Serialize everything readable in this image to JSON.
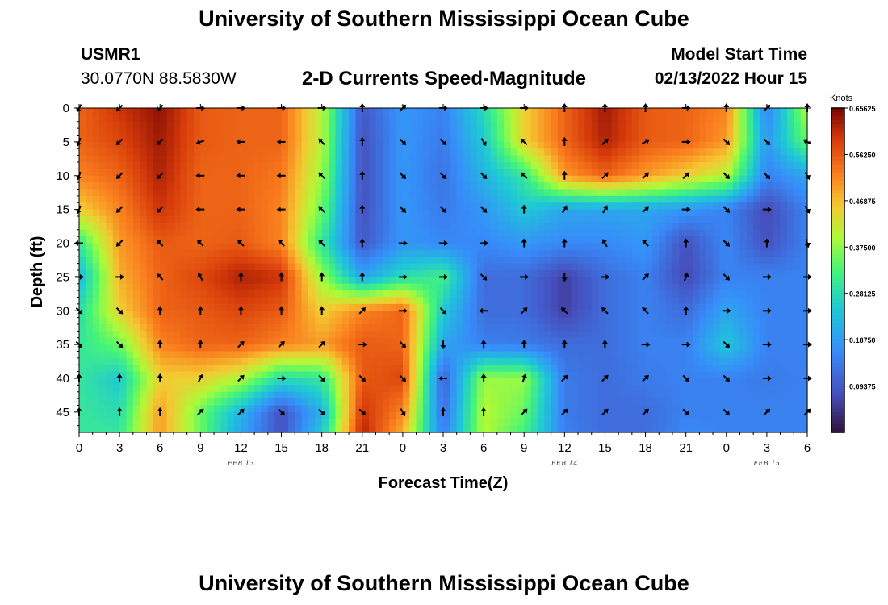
{
  "header": {
    "title": "University of Southern Mississippi Ocean Cube",
    "station": "USMR1",
    "coordinates": "30.0770N  88.5830W",
    "subtitle": "2-D Currents Speed-Magnitude",
    "model_start_label": "Model Start Time",
    "model_start_value": "02/13/2022 Hour 15"
  },
  "footer": {
    "title": "University of Southern Mississippi Ocean Cube"
  },
  "chart_data": {
    "type": "heatmap",
    "title": "2-D Currents Speed-Magnitude",
    "xlabel": "Forecast Time(Z)",
    "ylabel": "Depth (ft)",
    "x_hours_range": [
      0,
      54
    ],
    "y_depth_range": [
      0,
      48
    ],
    "x_tick_labels": [
      "0",
      "3",
      "6",
      "9",
      "12",
      "15",
      "18",
      "21",
      "0",
      "3",
      "6",
      "9",
      "12",
      "15",
      "18",
      "21",
      "0",
      "3",
      "6"
    ],
    "y_tick_values": [
      0,
      5,
      10,
      15,
      20,
      25,
      30,
      35,
      40,
      45
    ],
    "date_labels": [
      {
        "text": "FEB 13",
        "hour": 12
      },
      {
        "text": "FEB 14",
        "hour": 36
      },
      {
        "text": "FEB 15",
        "hour": 51
      }
    ],
    "colorbar": {
      "units": "Knots",
      "range": [
        0.0,
        0.65625
      ],
      "tick_labels": [
        "0.65625",
        "0.56250",
        "0.46875",
        "0.37500",
        "0.28125",
        "0.18750",
        "0.09375"
      ],
      "tick_values": [
        0.65625,
        0.5625,
        0.46875,
        0.375,
        0.28125,
        0.1875,
        0.09375
      ]
    },
    "speed_knots": {
      "hours": [
        0,
        3,
        6,
        9,
        12,
        15,
        18,
        21,
        24,
        27,
        30,
        33,
        36,
        39,
        42,
        45,
        48,
        51,
        54
      ],
      "depths": [
        0,
        5,
        10,
        15,
        20,
        25,
        30,
        35,
        40,
        45,
        48
      ],
      "rows": [
        [
          0.55,
          0.6,
          0.64,
          0.56,
          0.55,
          0.55,
          0.4,
          0.09,
          0.18,
          0.15,
          0.28,
          0.45,
          0.55,
          0.63,
          0.56,
          0.55,
          0.52,
          0.15,
          0.4
        ],
        [
          0.55,
          0.58,
          0.63,
          0.56,
          0.55,
          0.55,
          0.4,
          0.08,
          0.18,
          0.14,
          0.25,
          0.45,
          0.55,
          0.62,
          0.56,
          0.55,
          0.5,
          0.18,
          0.35
        ],
        [
          0.52,
          0.55,
          0.62,
          0.55,
          0.55,
          0.53,
          0.38,
          0.08,
          0.18,
          0.13,
          0.22,
          0.3,
          0.5,
          0.55,
          0.5,
          0.45,
          0.4,
          0.15,
          0.2
        ],
        [
          0.45,
          0.52,
          0.6,
          0.55,
          0.55,
          0.52,
          0.35,
          0.08,
          0.18,
          0.14,
          0.18,
          0.25,
          0.2,
          0.2,
          0.2,
          0.18,
          0.15,
          0.07,
          0.15
        ],
        [
          0.3,
          0.5,
          0.56,
          0.55,
          0.56,
          0.52,
          0.3,
          0.09,
          0.18,
          0.16,
          0.16,
          0.18,
          0.16,
          0.16,
          0.18,
          0.08,
          0.16,
          0.08,
          0.15
        ],
        [
          0.22,
          0.48,
          0.55,
          0.58,
          0.62,
          0.6,
          0.38,
          0.2,
          0.28,
          0.32,
          0.12,
          0.12,
          0.06,
          0.12,
          0.15,
          0.07,
          0.15,
          0.15,
          0.15
        ],
        [
          0.28,
          0.45,
          0.55,
          0.56,
          0.58,
          0.56,
          0.45,
          0.52,
          0.55,
          0.25,
          0.12,
          0.12,
          0.06,
          0.12,
          0.15,
          0.12,
          0.2,
          0.15,
          0.15
        ],
        [
          0.3,
          0.35,
          0.52,
          0.55,
          0.55,
          0.52,
          0.5,
          0.56,
          0.55,
          0.2,
          0.15,
          0.14,
          0.12,
          0.12,
          0.15,
          0.15,
          0.25,
          0.15,
          0.15
        ],
        [
          0.3,
          0.25,
          0.45,
          0.45,
          0.4,
          0.28,
          0.3,
          0.56,
          0.58,
          0.1,
          0.38,
          0.38,
          0.14,
          0.12,
          0.14,
          0.15,
          0.15,
          0.14,
          0.15
        ],
        [
          0.3,
          0.28,
          0.5,
          0.35,
          0.22,
          0.08,
          0.22,
          0.6,
          0.52,
          0.12,
          0.4,
          0.35,
          0.14,
          0.12,
          0.12,
          0.15,
          0.15,
          0.15,
          0.15
        ],
        [
          0.3,
          0.3,
          0.5,
          0.35,
          0.2,
          0.08,
          0.25,
          0.62,
          0.48,
          0.14,
          0.4,
          0.32,
          0.15,
          0.12,
          0.12,
          0.16,
          0.15,
          0.15,
          0.15
        ]
      ]
    },
    "current_vectors_deg": {
      "hours": [
        0,
        3,
        6,
        9,
        12,
        15,
        18,
        21,
        24,
        27,
        30,
        33,
        36,
        39,
        42,
        45,
        48,
        51,
        54
      ],
      "depths": [
        0,
        5,
        10,
        15,
        20,
        25,
        30,
        35,
        40,
        45
      ],
      "rows": [
        [
          210,
          225,
          225,
          90,
          90,
          90,
          90,
          0,
          45,
          90,
          90,
          90,
          0,
          0,
          0,
          90,
          0,
          45,
          0
        ],
        [
          200,
          225,
          225,
          250,
          270,
          270,
          315,
          0,
          135,
          135,
          150,
          315,
          0,
          45,
          60,
          90,
          135,
          135,
          300
        ],
        [
          200,
          225,
          225,
          270,
          270,
          270,
          315,
          0,
          135,
          135,
          135,
          315,
          0,
          45,
          45,
          45,
          135,
          135,
          150
        ],
        [
          200,
          225,
          225,
          270,
          270,
          270,
          315,
          0,
          135,
          135,
          135,
          0,
          30,
          30,
          45,
          90,
          135,
          90,
          150
        ],
        [
          270,
          225,
          315,
          315,
          315,
          315,
          315,
          0,
          90,
          90,
          90,
          0,
          0,
          330,
          315,
          0,
          135,
          0,
          165
        ],
        [
          90,
          90,
          315,
          330,
          0,
          0,
          0,
          0,
          90,
          90,
          135,
          90,
          180,
          90,
          45,
          20,
          135,
          90,
          90
        ],
        [
          135,
          135,
          0,
          0,
          0,
          0,
          0,
          45,
          90,
          135,
          270,
          45,
          315,
          315,
          315,
          0,
          90,
          90,
          90
        ],
        [
          135,
          135,
          0,
          0,
          45,
          45,
          45,
          90,
          135,
          180,
          0,
          0,
          0,
          0,
          90,
          90,
          135,
          90,
          90
        ],
        [
          0,
          0,
          0,
          30,
          45,
          90,
          135,
          135,
          135,
          270,
          0,
          20,
          45,
          45,
          45,
          135,
          135,
          90,
          90
        ],
        [
          0,
          0,
          0,
          45,
          45,
          135,
          135,
          135,
          150,
          0,
          0,
          45,
          45,
          45,
          45,
          135,
          135,
          45,
          45
        ]
      ]
    }
  }
}
